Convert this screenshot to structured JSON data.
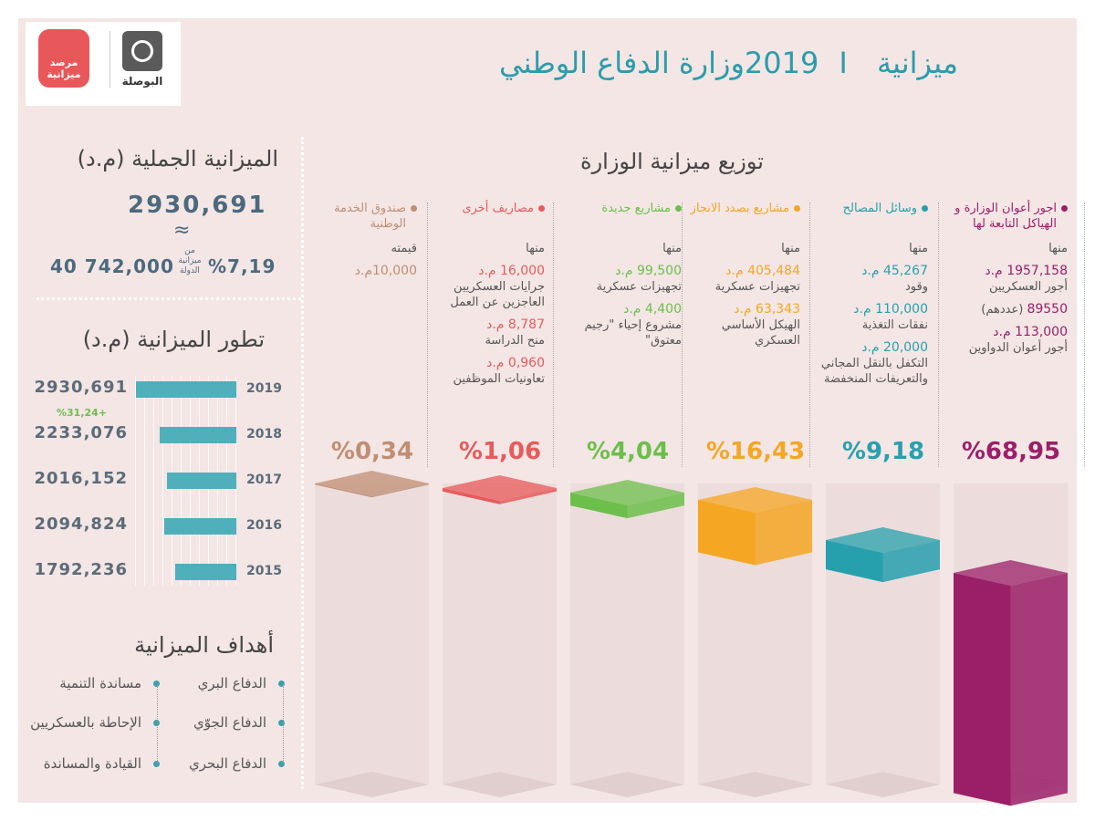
{
  "header": {
    "title_year": "ميزانية 2019",
    "title_sep": "I",
    "title_ministry": "وزارة الدفاع الوطني",
    "logo_left_text": "مرصد ميزانية",
    "logo_right_text": "البوصلة"
  },
  "total": {
    "title": "الميزانية الجملية (م.د)",
    "value": "2930,691",
    "approx": "≈",
    "pct": "%7,19",
    "of_state_l1": "من",
    "of_state_l2": "ميزانية",
    "of_state_l3": "الدولة",
    "state_budget": "40 742,000"
  },
  "evolution": {
    "title": "تطور الميزانية (م.د)",
    "growth": "%31,24+"
  },
  "goals": {
    "title": "أهداف الميزانية",
    "right": [
      "الدفاع البري",
      "الدفاع الجوّي",
      "الدفاع البحري"
    ],
    "left": [
      "مساندة التنمية",
      "الإحاطة بالعسكريين",
      "القيادة والمساندة"
    ]
  },
  "distribution": {
    "title": "توزيع ميزانية الوزارة",
    "minha": "منها",
    "columns": [
      {
        "label": "اجور أعوان الوزارة و الهياكل التابعة لها",
        "color": "#9b1f68",
        "items": [
          {
            "val": "1957,158 م.د",
            "desc": "أجور العسكريين"
          },
          {
            "val": "89550",
            "desc_inline": "(عددهم)"
          },
          {
            "val": "113,000 م.د",
            "desc": "أجور أعوان الدواوين"
          }
        ]
      },
      {
        "label": "وسائل المصالح",
        "color": "#27a0ad",
        "items": [
          {
            "val": "45,267 م.د",
            "desc": "وقود"
          },
          {
            "val": "110,000 م.د",
            "desc": "نفقات التغذية"
          },
          {
            "val": "20,000 م.د",
            "desc": "التكفل بالنقل المجاني والتعريفات المنخفضة"
          }
        ]
      },
      {
        "label": "مشاريع بصدد الانجاز",
        "color": "#f5a623",
        "items": [
          {
            "val": "405,484 م.د",
            "desc": "تجهيزات عسكرية"
          },
          {
            "val": "63,343 م.د",
            "desc": "الهيكل الأساسي العسكري"
          }
        ]
      },
      {
        "label": "مشاريع جديدة",
        "color": "#6dbf4b",
        "items": [
          {
            "val": "99,500 م.د",
            "desc": "تجهيزات عسكرية"
          },
          {
            "val": "4,400 م.د",
            "desc": "مشروع إحياء \"رجيم معتوق\""
          }
        ]
      },
      {
        "label": "مصاريف أخرى",
        "color": "#e85a5b",
        "items": [
          {
            "val": "16,000 م.د",
            "desc": "جرايات العسكريين العاجزين عن العمل"
          },
          {
            "val": "8,787 م.د",
            "desc": "منح الدراسة"
          },
          {
            "val": "0,960 م.د",
            "desc": "تعاونيات الموظفين"
          }
        ]
      },
      {
        "label": "صندوق الخدمة الوطنية",
        "color": "#c08e74",
        "minha_override": "قيمته",
        "items": [
          {
            "val": "10,000م.د"
          }
        ]
      }
    ]
  },
  "chart_data": [
    {
      "type": "bar",
      "title": "توزيع ميزانية الوزارة",
      "categories": [
        "اجور أعوان الوزارة و الهياكل التابعة لها",
        "وسائل المصالح",
        "مشاريع بصدد الانجاز",
        "مشاريع جديدة",
        "مصاريف أخرى",
        "صندوق الخدمة الوطنية"
      ],
      "values": [
        68.95,
        9.18,
        16.43,
        4.04,
        1.06,
        0.34
      ],
      "labels": [
        "%68,95",
        "%9,18",
        "%16,43",
        "%4,04",
        "%1,06",
        "%0,34"
      ],
      "colors": [
        "#9b1f68",
        "#27a0ad",
        "#f5a623",
        "#6dbf4b",
        "#e85a5b",
        "#c08e74"
      ],
      "unit": "%"
    },
    {
      "type": "bar",
      "orientation": "horizontal",
      "title": "تطور الميزانية (م.د)",
      "categories": [
        "2019",
        "2018",
        "2017",
        "2016",
        "2015"
      ],
      "values": [
        2930.691,
        2233.076,
        2016.152,
        2094.824,
        1792.236
      ],
      "labels": [
        "2930,691",
        "2233,076",
        "2016,152",
        "2094,824",
        "1792,236"
      ],
      "color": "#4fafbb"
    }
  ]
}
